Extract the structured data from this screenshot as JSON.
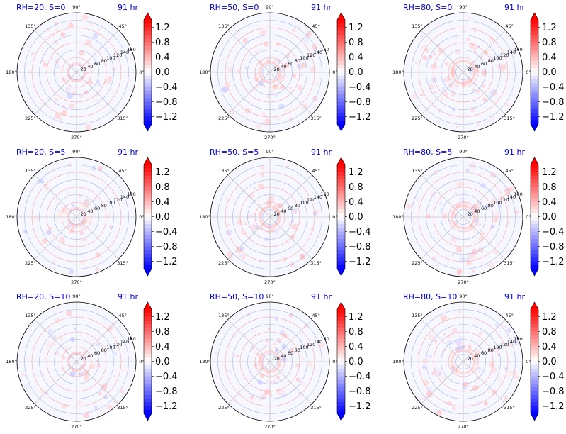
{
  "figure": {
    "panels": [
      {
        "title": "RH=20, S=0",
        "time": "91 hr"
      },
      {
        "title": "RH=50, S=0",
        "time": "91 hr"
      },
      {
        "title": "RH=80, S=0",
        "time": "91 hr"
      },
      {
        "title": "RH=20, S=5",
        "time": "91 hr"
      },
      {
        "title": "RH=50, S=5",
        "time": "91 hr"
      },
      {
        "title": "RH=80, S=5",
        "time": "91 hr"
      },
      {
        "title": "RH=20, S=10",
        "time": "91 hr"
      },
      {
        "title": "RH=50, S=10",
        "time": "91 hr"
      },
      {
        "title": "RH=80, S=10",
        "time": "91 hr"
      }
    ]
  },
  "chart_data": {
    "type": "heatmap",
    "projection": "polar",
    "grid": {
      "rows": 3,
      "cols": 3
    },
    "angular_ticks": [
      "0°",
      "45°",
      "90°",
      "135°",
      "180°",
      "225°",
      "270°",
      "315°"
    ],
    "radial_ticks": [
      "20",
      "40",
      "60",
      "80",
      "100",
      "120",
      "140",
      "160"
    ],
    "rlim": [
      0,
      160
    ],
    "colorbar": {
      "cmap": "bwr",
      "vmin": -1.4,
      "vmax": 1.4,
      "extend": "both",
      "ticks": [
        "1.2",
        "0.8",
        "0.4",
        "0.0",
        "−0.4",
        "−0.8",
        "−1.2"
      ],
      "colors": {
        "low": "#0000ff",
        "mid": "#ffffff",
        "high": "#ff0000"
      }
    },
    "grid_colors": {
      "positive": "#f4a6a6",
      "negative": "#a6b4f0",
      "neutral": "#b8b8b8"
    },
    "panels": [
      {
        "title": "RH=20, S=0",
        "time": "91 hr"
      },
      {
        "title": "RH=50, S=0",
        "time": "91 hr"
      },
      {
        "title": "RH=80, S=0",
        "time": "91 hr"
      },
      {
        "title": "RH=20, S=5",
        "time": "91 hr"
      },
      {
        "title": "RH=50, S=5",
        "time": "91 hr"
      },
      {
        "title": "RH=80, S=5",
        "time": "91 hr"
      },
      {
        "title": "RH=20, S=10",
        "time": "91 hr"
      },
      {
        "title": "RH=50, S=10",
        "time": "91 hr"
      },
      {
        "title": "RH=80, S=10",
        "time": "91 hr"
      }
    ]
  }
}
